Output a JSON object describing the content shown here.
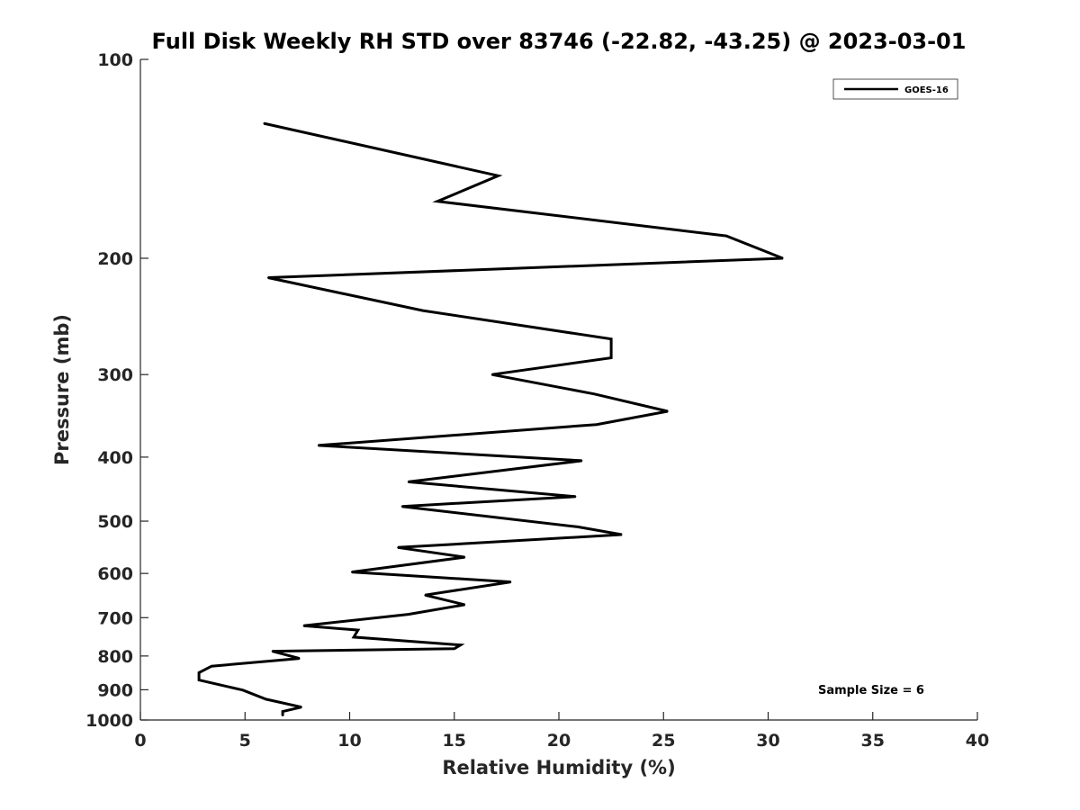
{
  "chart_data": {
    "type": "line",
    "title": "Full Disk Weekly RH STD over 83746 (-22.82, -43.25) @ 2023-03-01",
    "xlabel": "Relative Humidity (%)",
    "ylabel": "Pressure (mb)",
    "xlim": [
      0,
      40
    ],
    "ylim": [
      100,
      1000
    ],
    "yscale": "log",
    "reverse_y": true,
    "xticks": [
      0,
      5,
      10,
      15,
      20,
      25,
      30,
      35,
      40
    ],
    "yticks": [
      100,
      200,
      300,
      400,
      500,
      600,
      700,
      800,
      900,
      1000
    ],
    "grid": false,
    "legend_position": "top-right",
    "annotation": "Sample Size = 6",
    "series": [
      {
        "name": "GOES-16",
        "color": "#000000",
        "x": [
          5.9,
          17.1,
          14.2,
          28.0,
          30.7,
          6.1,
          13.5,
          22.5,
          22.5,
          16.8,
          21.7,
          25.2,
          21.8,
          8.5,
          21.1,
          12.8,
          20.8,
          12.5,
          20.9,
          23.0,
          12.3,
          15.5,
          10.1,
          17.7,
          13.6,
          15.5,
          12.8,
          7.8,
          10.4,
          10.2,
          15.3,
          15.0,
          6.3,
          7.6,
          3.4,
          2.8,
          2.8,
          4.9,
          6.0,
          7.7,
          6.8,
          6.8
        ],
        "y": [
          125,
          150,
          164,
          185,
          200,
          214,
          240,
          265,
          283,
          300,
          321,
          341,
          357,
          384,
          405,
          436,
          459,
          475,
          510,
          524,
          548,
          567,
          597,
          618,
          647,
          669,
          692,
          720,
          731,
          749,
          770,
          780,
          787,
          807,
          829,
          848,
          870,
          901,
          930,
          956,
          971,
          985
        ]
      }
    ]
  }
}
